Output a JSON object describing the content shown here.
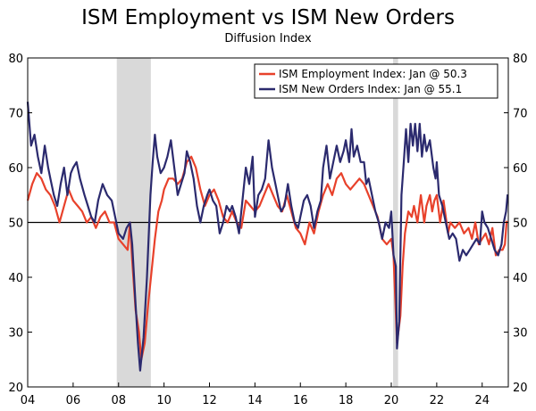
{
  "chart_data": {
    "type": "line",
    "title": "ISM Employment vs ISM New Orders",
    "subtitle": "Diffusion Index",
    "xlabel": "",
    "ylabel": "",
    "ylim": [
      20,
      80
    ],
    "xlim": [
      2004.0,
      2025.15
    ],
    "yticks": [
      20,
      30,
      40,
      50,
      60,
      70,
      80
    ],
    "xticks": [
      {
        "year": 2004,
        "label": "04"
      },
      {
        "year": 2006,
        "label": "06"
      },
      {
        "year": 2008,
        "label": "08"
      },
      {
        "year": 2010,
        "label": "10"
      },
      {
        "year": 2012,
        "label": "12"
      },
      {
        "year": 2014,
        "label": "14"
      },
      {
        "year": 2016,
        "label": "16"
      },
      {
        "year": 2018,
        "label": "18"
      },
      {
        "year": 2020,
        "label": "20"
      },
      {
        "year": 2022,
        "label": "22"
      },
      {
        "year": 2024,
        "label": "24"
      }
    ],
    "reference_line": 50,
    "recessions": [
      [
        2007.92,
        2009.42
      ],
      [
        2020.08,
        2020.3
      ]
    ],
    "legend": {
      "position": "top-right"
    },
    "series": [
      {
        "name": "ISM Employment Index: Jan @ 50.3",
        "color": "#e8412b",
        "points": [
          [
            2004.0,
            54
          ],
          [
            2004.2,
            57
          ],
          [
            2004.4,
            59
          ],
          [
            2004.6,
            58
          ],
          [
            2004.8,
            56
          ],
          [
            2005.0,
            55
          ],
          [
            2005.2,
            53
          ],
          [
            2005.4,
            50
          ],
          [
            2005.6,
            53
          ],
          [
            2005.8,
            56
          ],
          [
            2006.0,
            54
          ],
          [
            2006.2,
            53
          ],
          [
            2006.4,
            52
          ],
          [
            2006.6,
            50
          ],
          [
            2006.8,
            51
          ],
          [
            2007.0,
            49
          ],
          [
            2007.2,
            51
          ],
          [
            2007.4,
            52
          ],
          [
            2007.6,
            50
          ],
          [
            2007.8,
            50
          ],
          [
            2008.0,
            47
          ],
          [
            2008.2,
            46
          ],
          [
            2008.4,
            45
          ],
          [
            2008.5,
            50
          ],
          [
            2008.6,
            43
          ],
          [
            2008.75,
            34
          ],
          [
            2008.9,
            30
          ],
          [
            2009.0,
            25
          ],
          [
            2009.15,
            28
          ],
          [
            2009.3,
            35
          ],
          [
            2009.45,
            41
          ],
          [
            2009.6,
            47
          ],
          [
            2009.75,
            52
          ],
          [
            2009.9,
            54
          ],
          [
            2010.0,
            56
          ],
          [
            2010.2,
            58
          ],
          [
            2010.4,
            58
          ],
          [
            2010.6,
            57
          ],
          [
            2010.8,
            58
          ],
          [
            2011.0,
            61
          ],
          [
            2011.2,
            62
          ],
          [
            2011.4,
            60
          ],
          [
            2011.6,
            56
          ],
          [
            2011.8,
            53
          ],
          [
            2012.0,
            55
          ],
          [
            2012.2,
            56
          ],
          [
            2012.4,
            54
          ],
          [
            2012.6,
            51
          ],
          [
            2012.8,
            50
          ],
          [
            2013.0,
            52
          ],
          [
            2013.2,
            50
          ],
          [
            2013.4,
            49
          ],
          [
            2013.6,
            54
          ],
          [
            2013.8,
            53
          ],
          [
            2014.0,
            52
          ],
          [
            2014.2,
            53
          ],
          [
            2014.4,
            55
          ],
          [
            2014.6,
            57
          ],
          [
            2014.8,
            55
          ],
          [
            2015.0,
            53
          ],
          [
            2015.2,
            52
          ],
          [
            2015.4,
            55
          ],
          [
            2015.6,
            52
          ],
          [
            2015.8,
            49
          ],
          [
            2016.0,
            48
          ],
          [
            2016.2,
            46
          ],
          [
            2016.4,
            50
          ],
          [
            2016.6,
            48
          ],
          [
            2016.8,
            52
          ],
          [
            2017.0,
            55
          ],
          [
            2017.2,
            57
          ],
          [
            2017.4,
            55
          ],
          [
            2017.6,
            58
          ],
          [
            2017.8,
            59
          ],
          [
            2018.0,
            57
          ],
          [
            2018.2,
            56
          ],
          [
            2018.4,
            57
          ],
          [
            2018.6,
            58
          ],
          [
            2018.8,
            57
          ],
          [
            2019.0,
            55
          ],
          [
            2019.2,
            53
          ],
          [
            2019.4,
            51
          ],
          [
            2019.6,
            47
          ],
          [
            2019.8,
            46
          ],
          [
            2020.0,
            47
          ],
          [
            2020.1,
            44
          ],
          [
            2020.25,
            28
          ],
          [
            2020.4,
            33
          ],
          [
            2020.5,
            42
          ],
          [
            2020.6,
            48
          ],
          [
            2020.75,
            52
          ],
          [
            2020.9,
            51
          ],
          [
            2021.0,
            53
          ],
          [
            2021.15,
            50
          ],
          [
            2021.3,
            55
          ],
          [
            2021.45,
            50
          ],
          [
            2021.55,
            53
          ],
          [
            2021.7,
            55
          ],
          [
            2021.8,
            52
          ],
          [
            2021.9,
            54
          ],
          [
            2022.0,
            55
          ],
          [
            2022.15,
            50
          ],
          [
            2022.3,
            54
          ],
          [
            2022.5,
            48
          ],
          [
            2022.6,
            50
          ],
          [
            2022.8,
            49
          ],
          [
            2023.0,
            50
          ],
          [
            2023.2,
            48
          ],
          [
            2023.4,
            49
          ],
          [
            2023.55,
            47
          ],
          [
            2023.7,
            50
          ],
          [
            2023.85,
            46
          ],
          [
            2024.0,
            47
          ],
          [
            2024.15,
            48
          ],
          [
            2024.3,
            46
          ],
          [
            2024.45,
            49
          ],
          [
            2024.6,
            44
          ],
          [
            2024.75,
            45
          ],
          [
            2024.9,
            45
          ],
          [
            2025.0,
            46
          ],
          [
            2025.08,
            50.3
          ]
        ]
      },
      {
        "name": "ISM New Orders Index: Jan @ 55.1",
        "color": "#2b2a6e",
        "points": [
          [
            2004.0,
            72
          ],
          [
            2004.15,
            64
          ],
          [
            2004.3,
            66
          ],
          [
            2004.45,
            62
          ],
          [
            2004.6,
            59
          ],
          [
            2004.75,
            64
          ],
          [
            2004.9,
            60
          ],
          [
            2005.0,
            58
          ],
          [
            2005.15,
            55
          ],
          [
            2005.3,
            53
          ],
          [
            2005.45,
            57
          ],
          [
            2005.6,
            60
          ],
          [
            2005.75,
            55
          ],
          [
            2005.9,
            59
          ],
          [
            2006.0,
            60
          ],
          [
            2006.15,
            61
          ],
          [
            2006.3,
            58
          ],
          [
            2006.5,
            55
          ],
          [
            2006.65,
            53
          ],
          [
            2006.8,
            51
          ],
          [
            2006.95,
            50
          ],
          [
            2007.1,
            54
          ],
          [
            2007.3,
            57
          ],
          [
            2007.5,
            55
          ],
          [
            2007.7,
            54
          ],
          [
            2007.85,
            51
          ],
          [
            2008.0,
            48
          ],
          [
            2008.2,
            47
          ],
          [
            2008.35,
            49
          ],
          [
            2008.5,
            50
          ],
          [
            2008.6,
            46
          ],
          [
            2008.75,
            35
          ],
          [
            2008.85,
            28
          ],
          [
            2008.95,
            23
          ],
          [
            2009.1,
            29
          ],
          [
            2009.25,
            40
          ],
          [
            2009.4,
            55
          ],
          [
            2009.5,
            61
          ],
          [
            2009.6,
            66
          ],
          [
            2009.7,
            62
          ],
          [
            2009.85,
            59
          ],
          [
            2010.0,
            60
          ],
          [
            2010.15,
            62
          ],
          [
            2010.3,
            65
          ],
          [
            2010.45,
            60
          ],
          [
            2010.6,
            55
          ],
          [
            2010.75,
            57
          ],
          [
            2010.9,
            59
          ],
          [
            2011.0,
            63
          ],
          [
            2011.15,
            61
          ],
          [
            2011.3,
            58
          ],
          [
            2011.45,
            53
          ],
          [
            2011.6,
            50
          ],
          [
            2011.75,
            53
          ],
          [
            2011.9,
            55
          ],
          [
            2012.0,
            56
          ],
          [
            2012.15,
            54
          ],
          [
            2012.3,
            53
          ],
          [
            2012.45,
            48
          ],
          [
            2012.6,
            50
          ],
          [
            2012.75,
            53
          ],
          [
            2012.9,
            52
          ],
          [
            2013.0,
            53
          ],
          [
            2013.15,
            51
          ],
          [
            2013.3,
            48
          ],
          [
            2013.45,
            54
          ],
          [
            2013.6,
            60
          ],
          [
            2013.75,
            57
          ],
          [
            2013.9,
            62
          ],
          [
            2014.0,
            51
          ],
          [
            2014.15,
            55
          ],
          [
            2014.3,
            56
          ],
          [
            2014.45,
            58
          ],
          [
            2014.6,
            65
          ],
          [
            2014.75,
            60
          ],
          [
            2014.9,
            57
          ],
          [
            2015.0,
            55
          ],
          [
            2015.15,
            52
          ],
          [
            2015.3,
            53
          ],
          [
            2015.45,
            57
          ],
          [
            2015.6,
            53
          ],
          [
            2015.75,
            50
          ],
          [
            2015.9,
            49
          ],
          [
            2016.0,
            51
          ],
          [
            2016.15,
            54
          ],
          [
            2016.3,
            55
          ],
          [
            2016.45,
            53
          ],
          [
            2016.6,
            49
          ],
          [
            2016.75,
            52
          ],
          [
            2016.9,
            54
          ],
          [
            2017.0,
            60
          ],
          [
            2017.15,
            64
          ],
          [
            2017.3,
            58
          ],
          [
            2017.45,
            61
          ],
          [
            2017.6,
            64
          ],
          [
            2017.75,
            61
          ],
          [
            2017.9,
            63
          ],
          [
            2018.0,
            65
          ],
          [
            2018.15,
            61
          ],
          [
            2018.25,
            67
          ],
          [
            2018.35,
            62
          ],
          [
            2018.5,
            64
          ],
          [
            2018.65,
            61
          ],
          [
            2018.8,
            61
          ],
          [
            2018.9,
            57
          ],
          [
            2019.0,
            58
          ],
          [
            2019.15,
            55
          ],
          [
            2019.3,
            52
          ],
          [
            2019.45,
            50
          ],
          [
            2019.6,
            47
          ],
          [
            2019.75,
            50
          ],
          [
            2019.9,
            49
          ],
          [
            2020.0,
            52
          ],
          [
            2020.1,
            44
          ],
          [
            2020.2,
            42
          ],
          [
            2020.25,
            27
          ],
          [
            2020.35,
            32
          ],
          [
            2020.45,
            55
          ],
          [
            2020.55,
            61
          ],
          [
            2020.65,
            67
          ],
          [
            2020.75,
            61
          ],
          [
            2020.85,
            68
          ],
          [
            2020.95,
            64
          ],
          [
            2021.05,
            68
          ],
          [
            2021.15,
            63
          ],
          [
            2021.25,
            68
          ],
          [
            2021.35,
            62
          ],
          [
            2021.45,
            66
          ],
          [
            2021.55,
            63
          ],
          [
            2021.7,
            65
          ],
          [
            2021.85,
            60
          ],
          [
            2021.95,
            58
          ],
          [
            2022.0,
            61
          ],
          [
            2022.1,
            55
          ],
          [
            2022.25,
            53
          ],
          [
            2022.4,
            50
          ],
          [
            2022.55,
            47
          ],
          [
            2022.7,
            48
          ],
          [
            2022.85,
            47
          ],
          [
            2023.0,
            43
          ],
          [
            2023.15,
            45
          ],
          [
            2023.3,
            44
          ],
          [
            2023.45,
            45
          ],
          [
            2023.6,
            46
          ],
          [
            2023.75,
            47
          ],
          [
            2023.9,
            46
          ],
          [
            2024.0,
            52
          ],
          [
            2024.1,
            50
          ],
          [
            2024.25,
            49
          ],
          [
            2024.4,
            47
          ],
          [
            2024.55,
            45
          ],
          [
            2024.7,
            44
          ],
          [
            2024.85,
            46
          ],
          [
            2024.95,
            50
          ],
          [
            2025.05,
            52
          ],
          [
            2025.12,
            55.1
          ]
        ]
      }
    ]
  }
}
